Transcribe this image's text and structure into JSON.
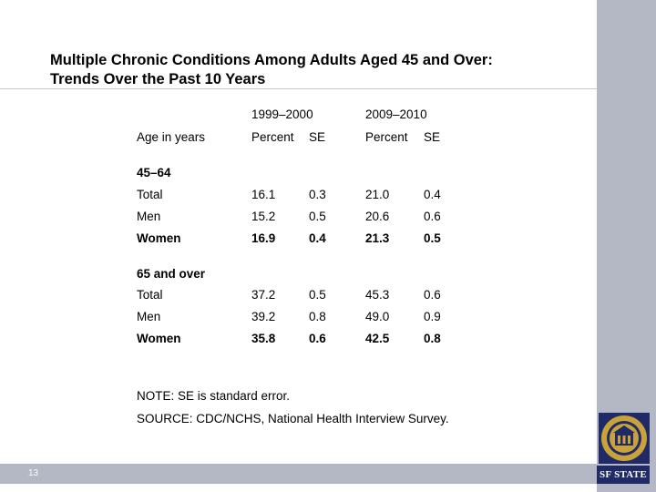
{
  "slide": {
    "title_line1": "Multiple Chronic Conditions Among Adults Aged 45 and Over:",
    "title_line2": "Trends Over the Past 10 Years",
    "page_number": "13"
  },
  "table": {
    "period_headers": [
      "1999–2000",
      "2009–2010"
    ],
    "row_header": "Age in years",
    "column_headers": [
      "Percent",
      "SE",
      "Percent",
      "SE"
    ],
    "groups": [
      {
        "label": "45–64",
        "rows": [
          {
            "label": "Total",
            "values": [
              "16.1",
              "0.3",
              "21.0",
              "0.4"
            ],
            "bold": false
          },
          {
            "label": "Men",
            "values": [
              "15.2",
              "0.5",
              "20.6",
              "0.6"
            ],
            "bold": false
          },
          {
            "label": "Women",
            "values": [
              "16.9",
              "0.4",
              "21.3",
              "0.5"
            ],
            "bold": true
          }
        ]
      },
      {
        "label": "65 and over",
        "rows": [
          {
            "label": "Total",
            "values": [
              "37.2",
              "0.5",
              "45.3",
              "0.6"
            ],
            "bold": false
          },
          {
            "label": "Men",
            "values": [
              "39.2",
              "0.8",
              "49.0",
              "0.9"
            ],
            "bold": false
          },
          {
            "label": "Women",
            "values": [
              "35.8",
              "0.6",
              "42.5",
              "0.8"
            ],
            "bold": true
          }
        ]
      }
    ]
  },
  "notes": {
    "note": "NOTE: SE is standard error.",
    "source": "SOURCE: CDC/NCHS, National Health Interview Survey."
  },
  "logo": {
    "text": "SF STATE",
    "seal_text": "SAN FRANCISCO STATE UNIVERSITY",
    "seal_color": "#c9a23a",
    "brand_color": "#1f2a66"
  }
}
